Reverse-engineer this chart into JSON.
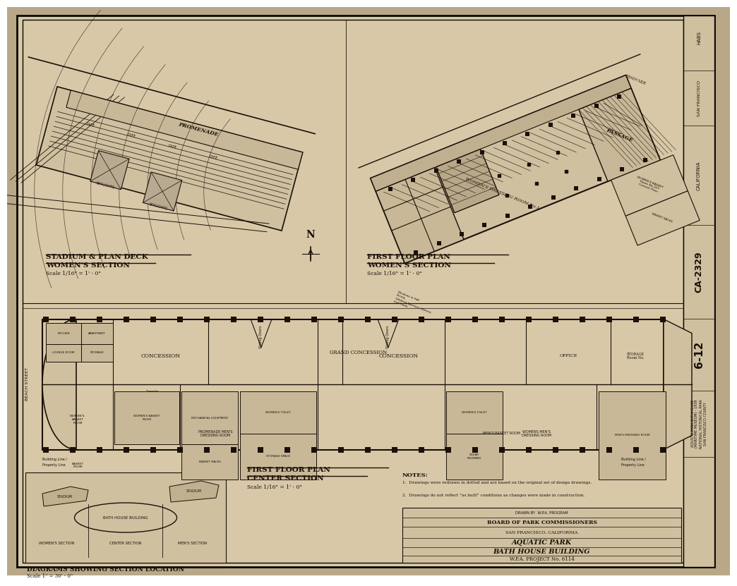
{
  "bg_color": "#b8a888",
  "paper_color": "#cfc0a0",
  "paper_color2": "#d8c8a8",
  "line_color": "#1a1008",
  "border_color": "#0a0800",
  "drawing_no": "CA-2329",
  "sheet_no": "6-12",
  "label_stadium_deck": "STADIUM & PLAN DECK\nWOMEN'S SECTION",
  "scale_stadium": "Scale 1/16\" = 1' - 0\"",
  "label_first_floor_women": "FIRST FLOOR PLAN\nWOMEN'S SECTION",
  "scale_first_floor": "Scale 1/16\" = 1' - 0\"",
  "label_first_floor_center": "FIRST FLOOR PLAN\nCENTER SECTION",
  "scale_center": "Scale 1/16\" = 1' - 0\"",
  "label_diagrams": "DIAGRAMS SHOWING SECTION LOCATION",
  "scale_diagrams": "Scale 1\" = 30' - 0\"",
  "notes_header": "NOTES:",
  "note1": "1.  Drawings were redrawn in dotted and are based on the original set of design drawings.",
  "note2": "2.  Drawings do not reflect \"as built\" conditions as changes were made in construction.",
  "box_title1": "BOARD OF PARK COMMISSIONERS",
  "box_title2": "SAN FRANCISCO, CALIFORNIA",
  "box_title3": "AQUATIC PARK",
  "box_title4": "BATH HOUSE BUILDING",
  "box_title5": "W.P.A. PROJECT No. 6114",
  "promenade": "PROMENADE",
  "passage": "PASSAGE",
  "women_dressing": "WOMEN'S DRESSING ROOM No.1",
  "concession": "CONCESSION",
  "grand_concession": "GRAND CONCESSION",
  "sliding_doors": "Sliding Doors",
  "men_dressing_label": "PROMENADE MENS DRESSING ROOM",
  "men_basket_room": "MEN'S BASKET ROOM",
  "men_dressing": "MEN'S DRESSING ROOM",
  "women_basket": "WOMEN'S BASKET",
  "storage": "STORAGE SPACE",
  "women_toilet": "WOMEN'S TOILET",
  "bath_house": "BATH HOUSE BUILDING",
  "stadium_label": "STADIUM",
  "women_section_lbl": "WOMEN'S SECTION",
  "center_section_lbl": "CENTER SECTION",
  "mens_section_lbl": "MEN'S SECTION",
  "north_arrow": "N",
  "right_text1": "AQUATIC PARK BATHHOUSE (MARITIME MUSEUM) - 1939",
  "right_text2": "NATIONAL HISTORICAL PARK",
  "right_text3": "SAN FRANCISCO",
  "right_text4": "CALIFORNIA",
  "right_text5": "HABS",
  "right_text6": "SAN FRANCISCO COUNTY"
}
